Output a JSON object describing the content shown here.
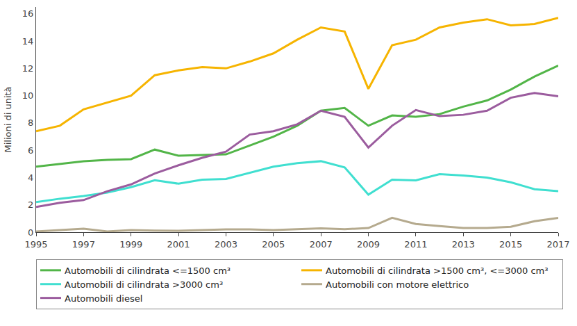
{
  "chart_data": {
    "type": "line",
    "y_label": "Milioni di unità",
    "x": [
      1995,
      1996,
      1997,
      1998,
      1999,
      2000,
      2001,
      2002,
      2003,
      2004,
      2005,
      2006,
      2007,
      2008,
      2009,
      2010,
      2011,
      2012,
      2013,
      2014,
      2015,
      2016,
      2017
    ],
    "xlim": [
      1995,
      2017
    ],
    "xticks": [
      1995,
      1997,
      1999,
      2001,
      2003,
      2005,
      2007,
      2009,
      2011,
      2013,
      2015,
      2017
    ],
    "ylim": [
      0,
      16.5
    ],
    "yticks": [
      0,
      2,
      4,
      6,
      8,
      10,
      12,
      14,
      16
    ],
    "grid": false,
    "legend": "bottom",
    "series": [
      {
        "name": "Automobili di cilindrata <=1500 cm³",
        "color": "#52b548",
        "values": [
          4.8,
          5.0,
          5.2,
          5.3,
          5.35,
          6.05,
          5.6,
          5.65,
          5.7,
          6.35,
          7.0,
          7.8,
          8.9,
          9.1,
          7.8,
          8.55,
          8.45,
          8.65,
          9.2,
          9.65,
          10.45,
          11.4,
          12.2
        ]
      },
      {
        "name": "Automobili di cilindrata >1500 cm³, <=3000 cm³",
        "color": "#f6b400",
        "values": [
          7.4,
          7.8,
          9.0,
          9.5,
          10.0,
          11.5,
          11.85,
          12.1,
          12.0,
          12.5,
          13.1,
          14.1,
          15.0,
          14.7,
          10.5,
          13.7,
          14.1,
          15.0,
          15.35,
          15.6,
          15.15,
          15.25,
          15.7
        ]
      },
      {
        "name": "Automobili di cilindrata >3000 cm³",
        "color": "#40dfd0",
        "values": [
          2.2,
          2.45,
          2.65,
          2.9,
          3.3,
          3.8,
          3.55,
          3.85,
          3.9,
          4.35,
          4.8,
          5.05,
          5.2,
          4.75,
          2.75,
          3.85,
          3.8,
          4.25,
          4.15,
          4.0,
          3.65,
          3.15,
          3.0
        ]
      },
      {
        "name": "Automobili con motore elettrico",
        "color": "#b5aa8e",
        "values": [
          0.05,
          0.15,
          0.25,
          0.05,
          0.15,
          0.12,
          0.1,
          0.15,
          0.2,
          0.2,
          0.15,
          0.22,
          0.28,
          0.22,
          0.3,
          1.05,
          0.6,
          0.45,
          0.3,
          0.3,
          0.4,
          0.8,
          1.05
        ]
      },
      {
        "name": "Automobili diesel",
        "color": "#9b5c9e",
        "values": [
          1.85,
          2.15,
          2.35,
          3.0,
          3.5,
          4.3,
          4.9,
          5.45,
          5.9,
          7.15,
          7.4,
          7.9,
          8.9,
          8.45,
          6.2,
          7.8,
          8.95,
          8.5,
          8.6,
          8.9,
          9.85,
          10.2,
          9.95
        ]
      }
    ]
  }
}
